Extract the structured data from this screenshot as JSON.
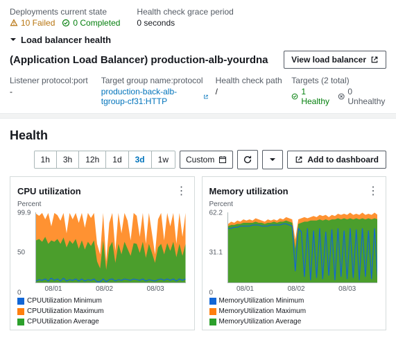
{
  "deploy": {
    "state_label": "Deployments current state",
    "failed_count": "10 Failed",
    "completed_count": "0 Completed",
    "grace_label": "Health check grace period",
    "grace_value": "0 seconds"
  },
  "colors": {
    "warn": "#b7740f",
    "ok": "#037f0c",
    "muted": "#545b64",
    "link": "#0073bb",
    "blue": "#1166d6",
    "orange": "#ff7f0e",
    "green": "#2ca02c"
  },
  "lb": {
    "expander": "Load balancer health",
    "title": "(Application Load Balancer) production-alb-yourdna",
    "view_button": "View load balancer",
    "listener_label": "Listener protocol:port",
    "listener_value": "-",
    "tg_label": "Target group name:protocol",
    "tg_value": "production-back-alb-tgroup-cf31:HTTP",
    "hc_label": "Health check path",
    "hc_value": "/",
    "targets_label": "Targets (2 total)",
    "healthy": "1 Healthy",
    "unhealthy": "0 Unhealthy"
  },
  "health": {
    "heading": "Health",
    "ranges": [
      "1h",
      "3h",
      "12h",
      "1d",
      "3d",
      "1w"
    ],
    "active_range": "3d",
    "custom": "Custom",
    "add_dash": "Add to dashboard"
  },
  "cpu": {
    "title": "CPU utilization",
    "ylabel": "Percent",
    "ymax": 99.9,
    "yticks": [
      {
        "v": 99.9,
        "pct": 4
      },
      {
        "v": 50,
        "pct": 52
      },
      {
        "v": 0,
        "pct": 100
      }
    ],
    "xticks": [
      {
        "label": "08/01",
        "pct": 12
      },
      {
        "label": "08/02",
        "pct": 46
      },
      {
        "label": "08/03",
        "pct": 80
      }
    ],
    "legend": [
      {
        "label": "CPUUtilization Minimum",
        "color": "#1166d6"
      },
      {
        "label": "CPUUtilization Maximum",
        "color": "#ff7f0e"
      },
      {
        "label": "CPUUtilization Average",
        "color": "#2ca02c"
      }
    ],
    "series": {
      "max": [
        98,
        95,
        99,
        90,
        99,
        80,
        99,
        96,
        88,
        99,
        70,
        99,
        90,
        99,
        85,
        99,
        78,
        99,
        92,
        99,
        55,
        40,
        99,
        30,
        85,
        99,
        45,
        99,
        70,
        99,
        88,
        60,
        99,
        95,
        65,
        99,
        55,
        99,
        70,
        40,
        90,
        99,
        60,
        99,
        80,
        99,
        55,
        99,
        65,
        99
      ],
      "avg": [
        60,
        62,
        58,
        65,
        55,
        60,
        58,
        62,
        55,
        64,
        50,
        60,
        55,
        62,
        48,
        60,
        47,
        58,
        52,
        60,
        30,
        20,
        60,
        18,
        50,
        58,
        28,
        55,
        40,
        58,
        48,
        38,
        56,
        55,
        42,
        58,
        35,
        55,
        42,
        28,
        50,
        55,
        40,
        56,
        45,
        58,
        36,
        55,
        38,
        55
      ],
      "min": [
        2,
        4,
        3,
        5,
        2,
        6,
        3,
        5,
        2,
        6,
        2,
        4,
        3,
        5,
        2,
        5,
        2,
        4,
        3,
        5,
        1,
        1,
        5,
        1,
        4,
        5,
        2,
        4,
        3,
        5,
        4,
        3,
        5,
        4,
        3,
        5,
        2,
        4,
        3,
        2,
        4,
        5,
        3,
        5,
        3,
        5,
        2,
        5,
        3,
        5
      ]
    }
  },
  "mem": {
    "title": "Memory utilization",
    "ylabel": "Percent",
    "ymax": 62.2,
    "yticks": [
      {
        "v": 62.2,
        "pct": 4
      },
      {
        "v": 31.1,
        "pct": 52
      },
      {
        "v": 0,
        "pct": 100
      }
    ],
    "xticks": [
      {
        "label": "08/01",
        "pct": 12
      },
      {
        "label": "08/02",
        "pct": 46
      },
      {
        "label": "08/03",
        "pct": 80
      }
    ],
    "legend": [
      {
        "label": "MemoryUtilization Minimum",
        "color": "#1166d6"
      },
      {
        "label": "MemoryUtilization Maximum",
        "color": "#ff7f0e"
      },
      {
        "label": "MemoryUtilization Average",
        "color": "#2ca02c"
      }
    ],
    "series": {
      "max": [
        52,
        54,
        53,
        55,
        54,
        56,
        55,
        56,
        55,
        57,
        56,
        55,
        54,
        56,
        55,
        56,
        55,
        57,
        56,
        58,
        57,
        56,
        38,
        56,
        57,
        58,
        57,
        58,
        59,
        58,
        60,
        59,
        60,
        58,
        60,
        59,
        61,
        60,
        61,
        60,
        62,
        60,
        61,
        60,
        62,
        60,
        61,
        60,
        62,
        60
      ],
      "avg": [
        50,
        51,
        51,
        52,
        52,
        53,
        53,
        53,
        53,
        54,
        53,
        53,
        52,
        53,
        53,
        54,
        53,
        54,
        54,
        55,
        54,
        53,
        30,
        52,
        53,
        54,
        54,
        55,
        55,
        55,
        56,
        55,
        56,
        55,
        56,
        56,
        57,
        56,
        57,
        56,
        57,
        56,
        57,
        56,
        57,
        56,
        57,
        56,
        57,
        56
      ],
      "min": [
        48,
        48,
        49,
        49,
        50,
        50,
        50,
        50,
        51,
        51,
        51,
        50,
        50,
        50,
        51,
        51,
        51,
        51,
        52,
        52,
        51,
        50,
        10,
        48,
        45,
        5,
        48,
        2,
        46,
        4,
        48,
        3,
        45,
        6,
        47,
        2,
        48,
        5,
        46,
        3,
        48,
        4,
        47,
        2,
        48,
        5,
        46,
        3,
        48,
        4
      ]
    }
  }
}
